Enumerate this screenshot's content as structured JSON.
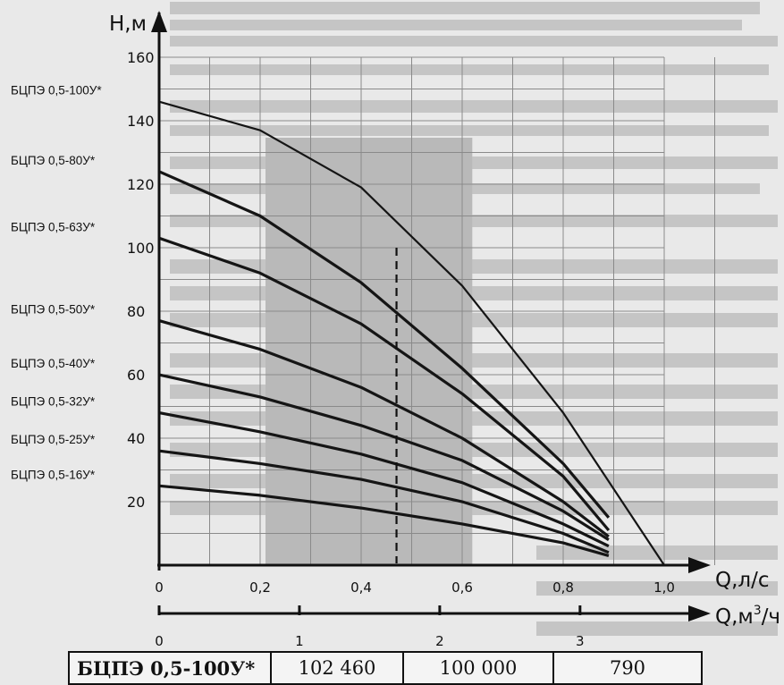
{
  "chart_data": {
    "type": "line",
    "ylabel": "H,м",
    "xlabel": "Q,л/с",
    "x2label_main": "Q,м",
    "x2label_sup": "3",
    "x2label_tail": "/ч",
    "xlim": [
      0,
      1.0
    ],
    "ylim": [
      0,
      160
    ],
    "y_ticks": [
      20,
      40,
      60,
      80,
      100,
      120,
      140,
      160
    ],
    "x_ticks": [
      "0",
      "0,2",
      "0,4",
      "0,6",
      "0,8",
      "1,0"
    ],
    "x2_ticks": [
      "0",
      "1",
      "2",
      "3"
    ],
    "series": [
      {
        "name": "БЦПЭ 0,5-100У*",
        "x": [
          0,
          0.2,
          0.4,
          0.6,
          0.8,
          1.0
        ],
        "y": [
          146,
          137,
          119,
          88,
          48,
          0
        ]
      },
      {
        "name": "БЦПЭ 0,5-80У*",
        "x": [
          0,
          0.2,
          0.4,
          0.6,
          0.8,
          0.89
        ],
        "y": [
          124,
          110,
          89,
          62,
          32,
          15
        ]
      },
      {
        "name": "БЦПЭ 0,5-63У*",
        "x": [
          0,
          0.2,
          0.4,
          0.6,
          0.8,
          0.89
        ],
        "y": [
          103,
          92,
          76,
          54,
          28,
          11
        ]
      },
      {
        "name": "БЦПЭ 0,5-50У*",
        "x": [
          0,
          0.2,
          0.4,
          0.6,
          0.8,
          0.89
        ],
        "y": [
          77,
          68,
          56,
          40,
          20,
          9
        ]
      },
      {
        "name": "БЦПЭ 0,5-40У*",
        "x": [
          0,
          0.2,
          0.4,
          0.6,
          0.8,
          0.89
        ],
        "y": [
          60,
          53,
          44,
          33,
          17,
          8
        ]
      },
      {
        "name": "БЦПЭ 0,5-32У*",
        "x": [
          0,
          0.2,
          0.4,
          0.6,
          0.8,
          0.89
        ],
        "y": [
          48,
          42,
          35,
          26,
          13,
          6
        ]
      },
      {
        "name": "БЦПЭ 0,5-25У*",
        "x": [
          0,
          0.2,
          0.4,
          0.6,
          0.8,
          0.89
        ],
        "y": [
          36,
          32,
          27,
          20,
          10,
          4
        ]
      },
      {
        "name": "БЦПЭ 0,5-16У*",
        "x": [
          0,
          0.2,
          0.4,
          0.6,
          0.8,
          0.89
        ],
        "y": [
          25,
          22,
          18,
          13,
          7,
          3
        ]
      }
    ],
    "working_zone_x": [
      0.2,
      0.62
    ],
    "dashed_x": 0.47,
    "grid": true
  },
  "table": {
    "cells": [
      "БЦПЭ 0,5-100У*",
      "102 460",
      "100 000",
      "790"
    ]
  },
  "colors": {
    "zone": "#b9b9b9",
    "line": "#151515",
    "background": "#e9e9e9"
  }
}
